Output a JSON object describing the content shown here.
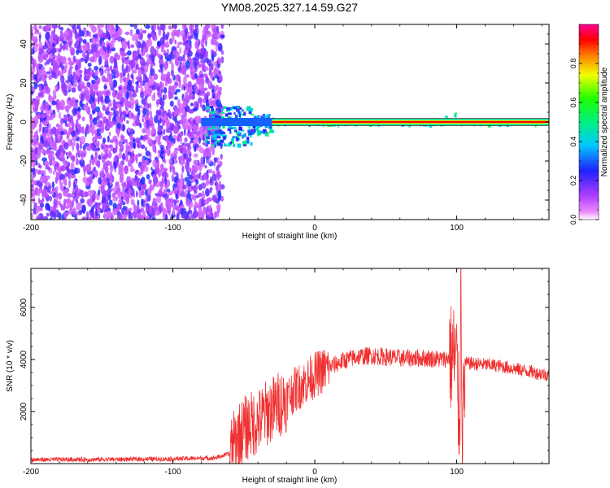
{
  "title": "YM08.2025.327.14.59.G27",
  "chart_data": [
    {
      "type": "heatmap",
      "name": "spectrogram",
      "xlabel": "Height of straight line (km)",
      "ylabel": "Frequency (Hz)",
      "xlim": [
        -200,
        165
      ],
      "ylim": [
        -50,
        50
      ],
      "xticks": [
        -200,
        -100,
        0,
        100
      ],
      "yticks": [
        -40,
        -20,
        0,
        20,
        40
      ],
      "colorbar": {
        "label": "Normalized spectral amplitude",
        "range": [
          0,
          1
        ],
        "ticks": [
          0.0,
          0.2,
          0.4,
          0.6,
          0.8
        ],
        "colormap": "hsv-rainbow (white, magenta, blue, cyan, green, yellow, red)"
      },
      "features": [
        {
          "label": "diffuse noise",
          "x_range": [
            -200,
            -65
          ],
          "freq_range": [
            -50,
            50
          ],
          "amplitude": "0.1-0.3"
        },
        {
          "label": "onset patches",
          "x_range": [
            -78,
            -30
          ],
          "freq_range": [
            -12,
            8
          ],
          "amplitude": "0.2-0.5"
        },
        {
          "label": "scattered points",
          "x_range": [
            -30,
            165
          ],
          "freq_range": [
            -4,
            5
          ],
          "amplitude": "0.3-0.6"
        },
        {
          "label": "carrier line",
          "x_range": [
            -30,
            165
          ],
          "frequency": 0,
          "amplitude": 1.0
        }
      ]
    },
    {
      "type": "line",
      "name": "snr",
      "xlabel": "Height of straight line (km)",
      "ylabel": "SNR (10 * v/v)",
      "xlim": [
        -200,
        165
      ],
      "ylim": [
        0,
        7500
      ],
      "xticks": [
        -200,
        -100,
        0,
        100
      ],
      "yticks": [
        2000,
        4000,
        6000
      ],
      "color": "#f03030",
      "series": [
        {
          "name": "SNR",
          "x": [
            -200,
            -150,
            -100,
            -70,
            -60,
            -55,
            -50,
            -45,
            -40,
            -35,
            -30,
            -25,
            -20,
            -15,
            -10,
            -5,
            0,
            10,
            20,
            30,
            40,
            50,
            60,
            70,
            80,
            90,
            98,
            100,
            102,
            103,
            104,
            106,
            110,
            120,
            130,
            140,
            150,
            160,
            165
          ],
          "y": [
            150,
            160,
            180,
            220,
            380,
            1000,
            1300,
            1500,
            1600,
            1900,
            2100,
            2300,
            2500,
            2800,
            3000,
            3200,
            3400,
            3700,
            3950,
            4100,
            4150,
            4100,
            4050,
            4050,
            4050,
            4000,
            4100,
            3900,
            1200,
            7300,
            1100,
            3850,
            3850,
            3800,
            3750,
            3650,
            3550,
            3450,
            3400
          ]
        }
      ]
    }
  ]
}
